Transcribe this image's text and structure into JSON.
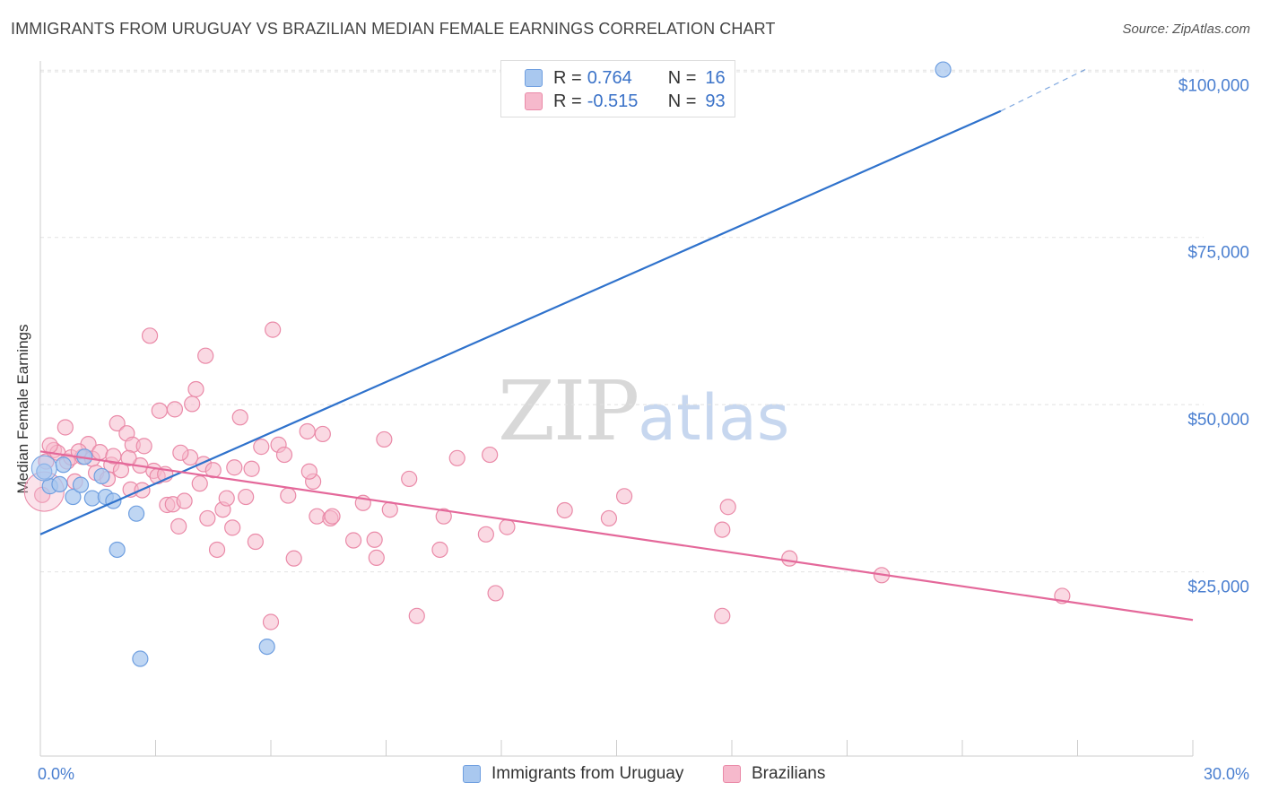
{
  "title": "IMMIGRANTS FROM URUGUAY VS BRAZILIAN MEDIAN FEMALE EARNINGS CORRELATION CHART",
  "source": "Source: ZipAtlas.com",
  "watermark": {
    "zip": "ZIP",
    "atlas": "atlas"
  },
  "legend_top": {
    "r_label": "R =",
    "n_label": "N =",
    "rows": [
      {
        "r": "0.764",
        "n": "16"
      },
      {
        "r": "-0.515",
        "n": "93"
      }
    ]
  },
  "colors": {
    "uruguay_fill": "#a9c8ef",
    "uruguay_stroke": "#6f9fe0",
    "uruguay_line": "#2f72cc",
    "brazil_fill": "#f6b9cc",
    "brazil_stroke": "#ea8aa8",
    "brazil_line": "#e4689a",
    "grid": "#e2e2e2",
    "tick_text": "#4a7fd0"
  },
  "chart_data": {
    "type": "scatter",
    "title": "IMMIGRANTS FROM URUGUAY VS BRAZILIAN MEDIAN FEMALE EARNINGS CORRELATION CHART",
    "xlabel": "",
    "ylabel": "Median Female Earnings",
    "xlim": [
      0,
      30
    ],
    "ylim": [
      0,
      105000
    ],
    "x_tick_labels": [
      "0.0%",
      "30.0%"
    ],
    "y_ticks": [
      25000,
      50000,
      75000,
      100000
    ],
    "y_tick_labels": [
      "$25,000",
      "$50,000",
      "$75,000",
      "$100,000"
    ],
    "grid": true,
    "legend": "bottom",
    "series": [
      {
        "name": "Immigrants from Uruguay",
        "points": [
          [
            0.1,
            40000
          ],
          [
            0.25,
            37800
          ],
          [
            0.5,
            38100
          ],
          [
            0.6,
            41000
          ],
          [
            0.85,
            36200
          ],
          [
            1.05,
            38000
          ],
          [
            1.35,
            36000
          ],
          [
            1.6,
            39300
          ],
          [
            1.7,
            36200
          ],
          [
            1.9,
            35600
          ],
          [
            2.0,
            28300
          ],
          [
            2.5,
            33700
          ],
          [
            1.15,
            42200
          ],
          [
            2.6,
            12000
          ],
          [
            5.9,
            13800
          ],
          [
            23.5,
            100100
          ]
        ],
        "trend": {
          "x": [
            0,
            25
          ],
          "y": [
            30600,
            93900
          ],
          "dashed_to": [
            27.2,
            100100
          ]
        }
      },
      {
        "name": "Brazilians",
        "points": [
          [
            0.05,
            36500
          ],
          [
            0.15,
            41500
          ],
          [
            0.35,
            43200
          ],
          [
            0.45,
            42800
          ],
          [
            0.65,
            46600
          ],
          [
            0.7,
            41500
          ],
          [
            0.8,
            42100
          ],
          [
            0.9,
            38500
          ],
          [
            1.1,
            42200
          ],
          [
            1.25,
            44100
          ],
          [
            1.35,
            41900
          ],
          [
            1.45,
            39800
          ],
          [
            1.55,
            42900
          ],
          [
            1.75,
            38900
          ],
          [
            1.85,
            41000
          ],
          [
            1.9,
            42300
          ],
          [
            2.0,
            47200
          ],
          [
            2.1,
            40200
          ],
          [
            2.25,
            45700
          ],
          [
            2.35,
            37300
          ],
          [
            2.4,
            44000
          ],
          [
            2.6,
            40900
          ],
          [
            2.65,
            37200
          ],
          [
            2.7,
            43800
          ],
          [
            2.85,
            60300
          ],
          [
            2.95,
            40100
          ],
          [
            3.05,
            39300
          ],
          [
            3.1,
            49100
          ],
          [
            3.25,
            39600
          ],
          [
            3.3,
            35000
          ],
          [
            3.45,
            35100
          ],
          [
            3.5,
            49300
          ],
          [
            3.6,
            31800
          ],
          [
            3.75,
            35600
          ],
          [
            3.9,
            42100
          ],
          [
            3.95,
            50100
          ],
          [
            4.05,
            52300
          ],
          [
            4.15,
            38200
          ],
          [
            4.25,
            41100
          ],
          [
            4.3,
            57300
          ],
          [
            4.35,
            33000
          ],
          [
            4.5,
            40200
          ],
          [
            4.6,
            28300
          ],
          [
            4.75,
            34300
          ],
          [
            4.85,
            36000
          ],
          [
            5.0,
            31600
          ],
          [
            5.2,
            48100
          ],
          [
            5.35,
            36200
          ],
          [
            5.5,
            40400
          ],
          [
            5.6,
            29500
          ],
          [
            5.75,
            43700
          ],
          [
            6.0,
            17500
          ],
          [
            6.05,
            61200
          ],
          [
            6.2,
            44000
          ],
          [
            6.35,
            42500
          ],
          [
            6.45,
            36400
          ],
          [
            6.6,
            27000
          ],
          [
            6.95,
            46000
          ],
          [
            7.1,
            38500
          ],
          [
            7.2,
            33300
          ],
          [
            7.35,
            45600
          ],
          [
            7.55,
            33000
          ],
          [
            7.6,
            33300
          ],
          [
            8.15,
            29700
          ],
          [
            8.4,
            35300
          ],
          [
            8.7,
            29800
          ],
          [
            8.75,
            27100
          ],
          [
            8.95,
            44800
          ],
          [
            9.1,
            34300
          ],
          [
            9.6,
            38900
          ],
          [
            9.8,
            18400
          ],
          [
            10.4,
            28300
          ],
          [
            10.5,
            33300
          ],
          [
            10.85,
            42000
          ],
          [
            11.6,
            30600
          ],
          [
            11.7,
            42500
          ],
          [
            11.85,
            21800
          ],
          [
            12.15,
            31700
          ],
          [
            13.65,
            34200
          ],
          [
            14.8,
            33000
          ],
          [
            15.2,
            36300
          ],
          [
            17.75,
            31300
          ],
          [
            17.75,
            18400
          ],
          [
            17.9,
            34700
          ],
          [
            19.5,
            27000
          ],
          [
            21.9,
            24500
          ],
          [
            26.6,
            21400
          ],
          [
            1.0,
            43000
          ],
          [
            3.65,
            42800
          ],
          [
            0.25,
            43900
          ],
          [
            5.05,
            40600
          ],
          [
            2.3,
            42000
          ],
          [
            7.0,
            40000
          ]
        ],
        "trend": {
          "x": [
            0,
            30
          ],
          "y": [
            43000,
            17800
          ]
        }
      }
    ]
  }
}
